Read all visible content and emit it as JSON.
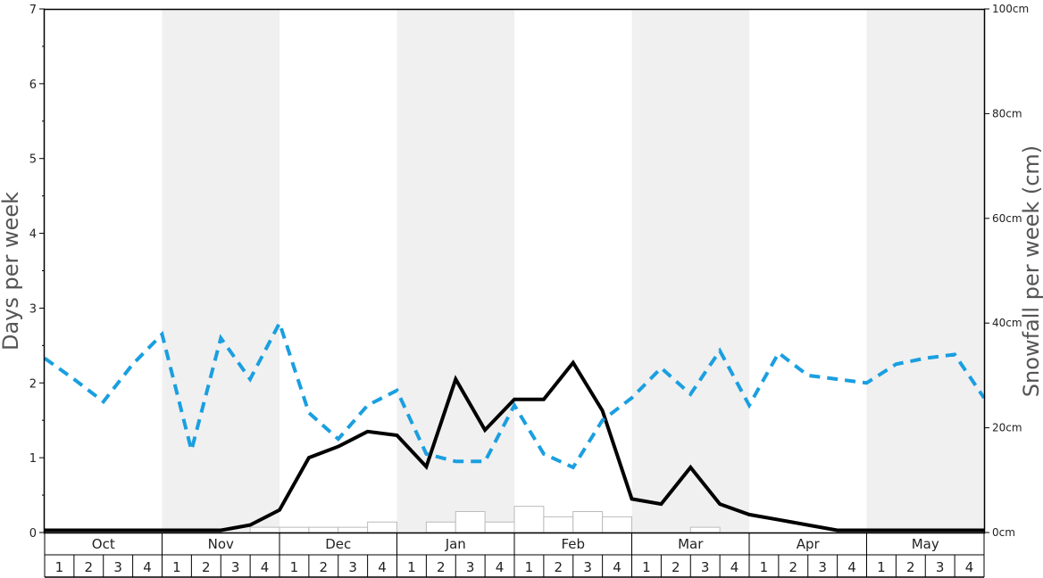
{
  "chart_data": {
    "type": "line",
    "title": "",
    "left_axis": {
      "label": "Days per week",
      "range": [
        0,
        7
      ],
      "ticks": [
        "0",
        "1",
        "2",
        "3",
        "4",
        "5",
        "6",
        "7"
      ]
    },
    "right_axis": {
      "label": "Snowfall per week (cm)",
      "range": [
        0,
        100
      ],
      "ticks": [
        "0cm",
        "20cm",
        "40cm",
        "60cm",
        "80cm",
        "100cm"
      ]
    },
    "months": [
      "Oct",
      "Nov",
      "Dec",
      "Jan",
      "Feb",
      "Mar",
      "Apr",
      "May"
    ],
    "shaded_months": [
      "Nov",
      "Jan",
      "Mar",
      "May"
    ],
    "weeks": [
      "1",
      "2",
      "3",
      "4"
    ],
    "colors": {
      "snow_days_line": "#000000",
      "secondary_line": "#1a9fe0",
      "bars_stroke": "#bbbbbb",
      "shade": "#f0f0f0"
    },
    "series": [
      {
        "style": "solid",
        "axis": "left",
        "values": [
          0.03,
          0.03,
          0.03,
          0.03,
          0.03,
          0.03,
          0.03,
          0.1,
          0.3,
          1.0,
          1.15,
          1.35,
          1.3,
          0.88,
          2.05,
          1.37,
          1.78,
          1.78,
          2.27,
          1.63,
          0.45,
          0.38,
          0.87,
          0.38,
          0.24,
          0.17,
          0.1,
          0.03,
          0.03,
          0.03,
          0.03,
          0.03,
          0.03
        ]
      },
      {
        "style": "dashed",
        "axis": "left",
        "values": [
          2.33,
          2.05,
          1.75,
          2.25,
          2.65,
          1.1,
          2.6,
          2.05,
          2.8,
          1.6,
          1.25,
          1.7,
          1.9,
          1.05,
          0.95,
          0.95,
          1.7,
          1.05,
          0.87,
          1.5,
          1.8,
          2.2,
          1.85,
          2.43,
          1.7,
          2.4,
          2.1,
          2.05,
          2.0,
          2.25,
          2.33,
          2.38,
          1.8
        ]
      },
      {
        "type": "bar",
        "axis": "right",
        "values": [
          0,
          0,
          0,
          0,
          0,
          0,
          0,
          1,
          1,
          1,
          1,
          2,
          0,
          2,
          4,
          2,
          5,
          3,
          4,
          3,
          0,
          0,
          1,
          0,
          0,
          0,
          0,
          0,
          0,
          0,
          0,
          0
        ]
      }
    ]
  }
}
